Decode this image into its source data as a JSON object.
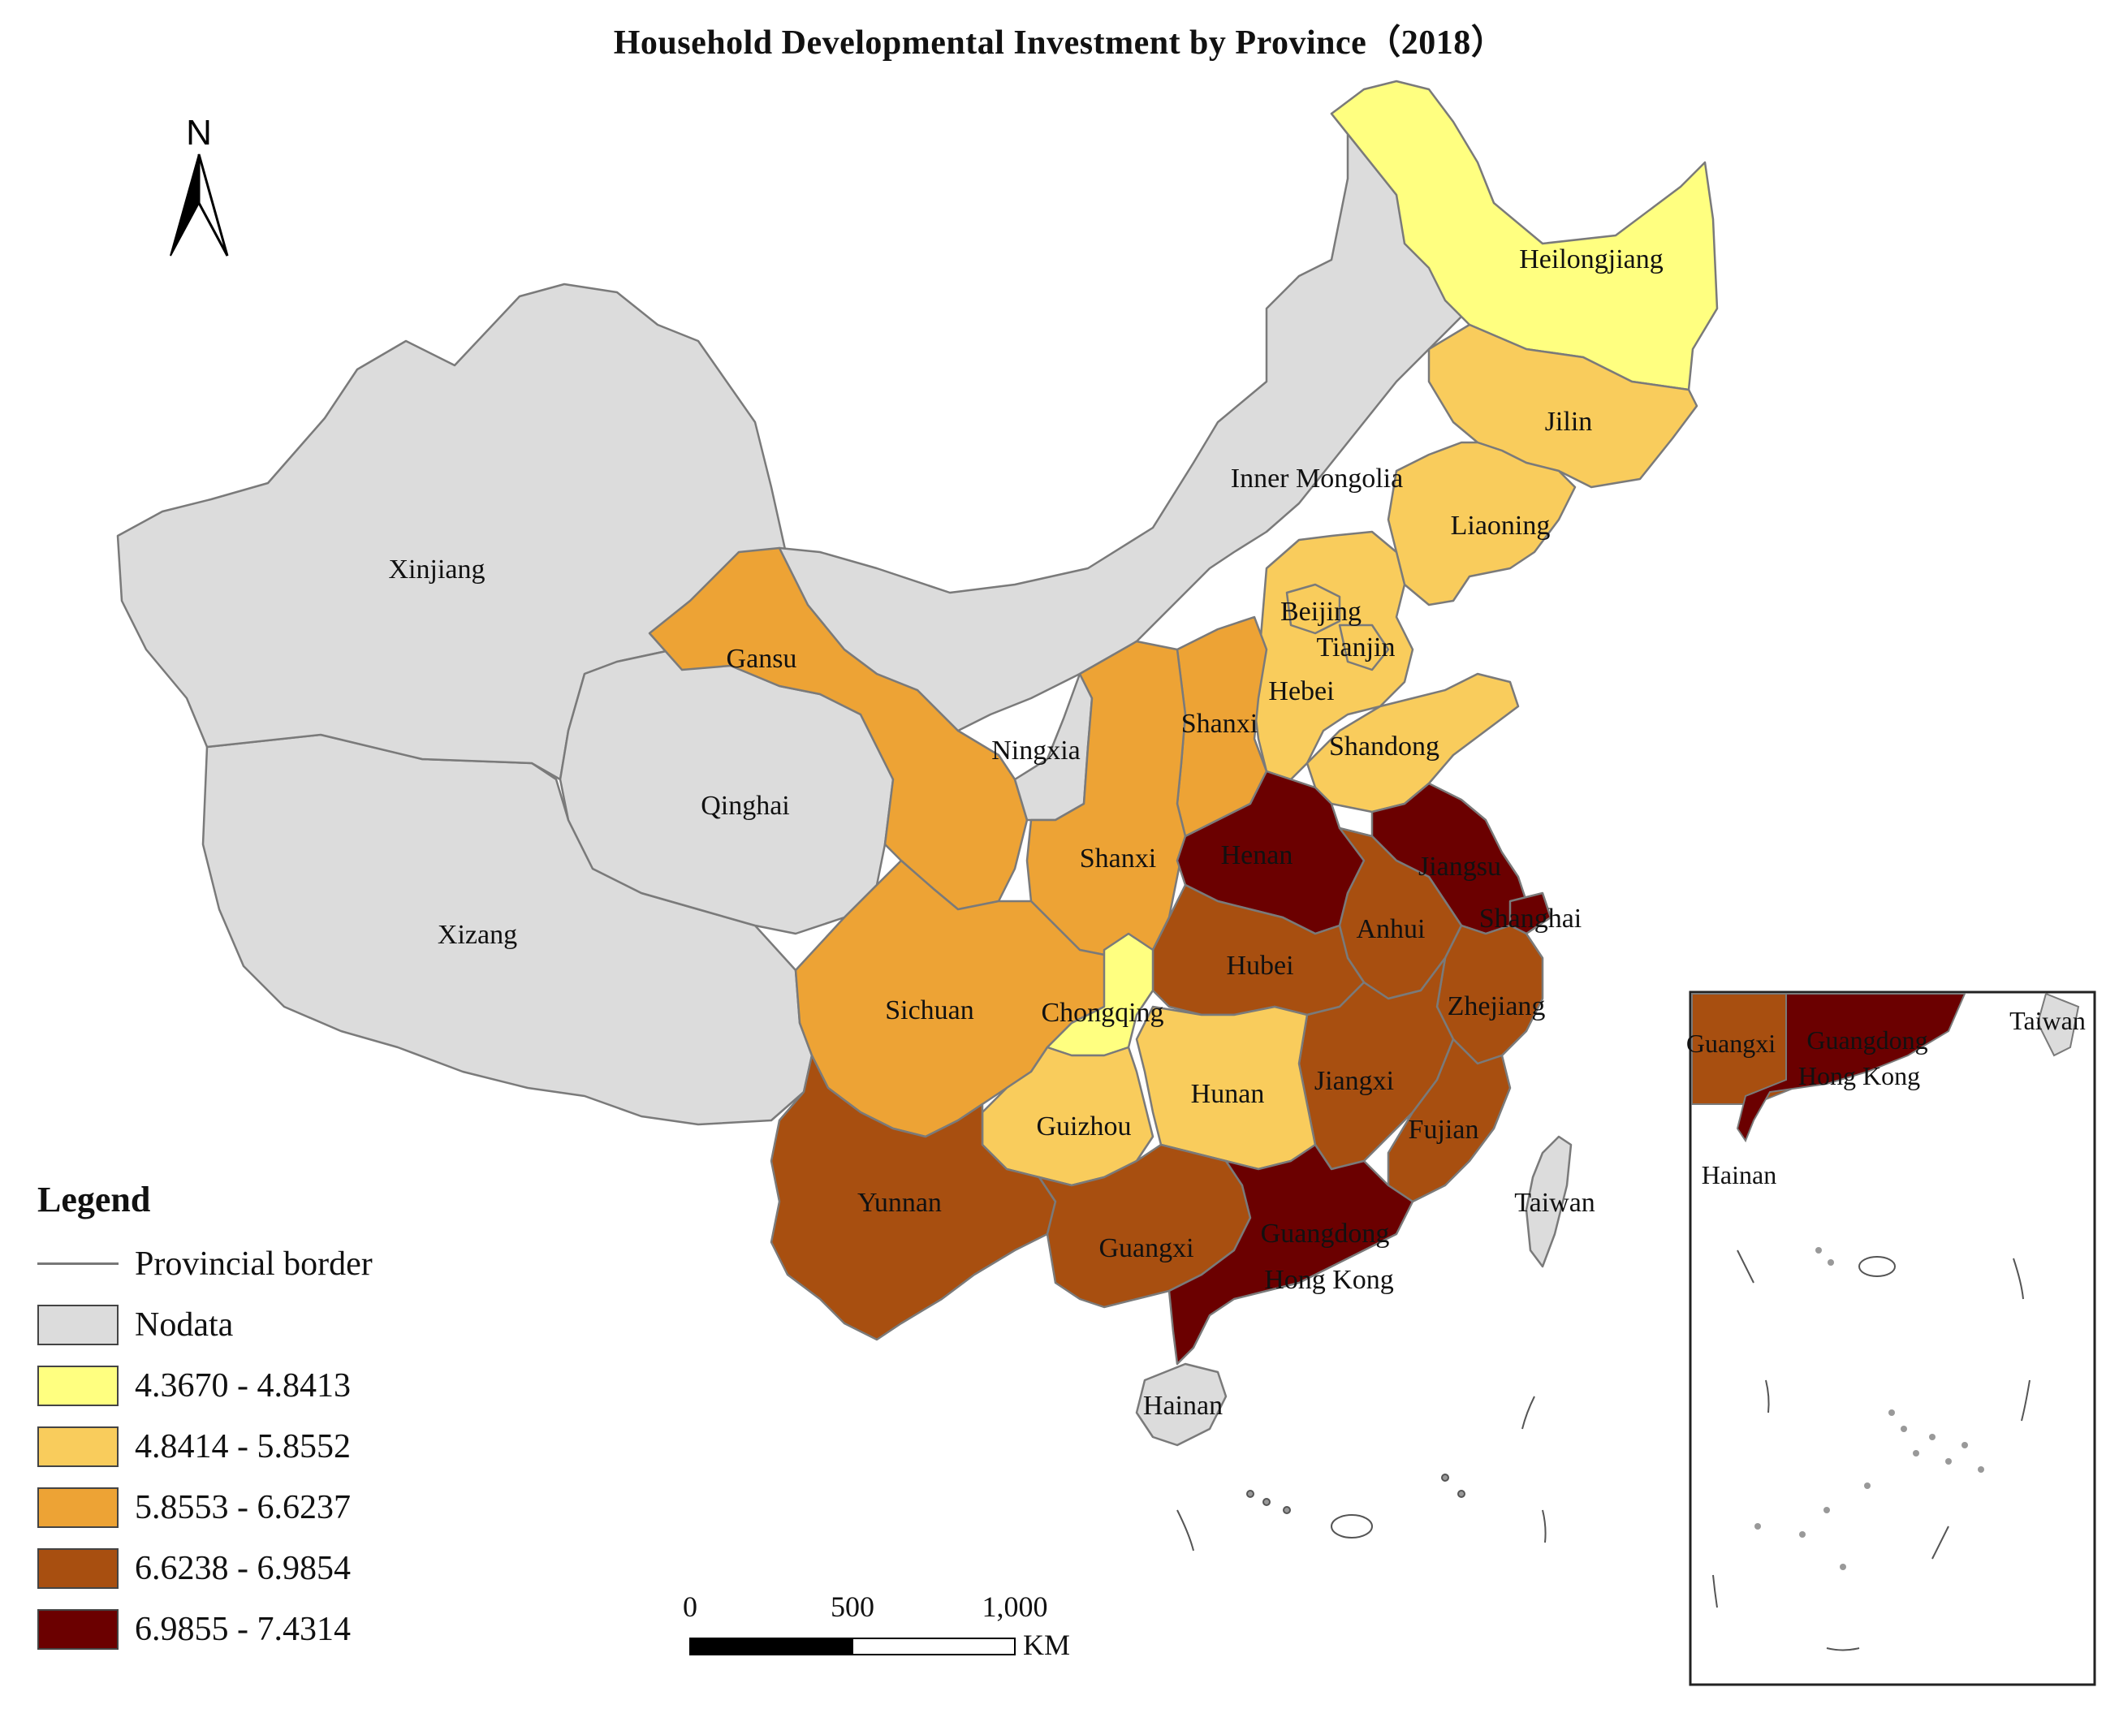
{
  "title": "Household Developmental Investment by Province（2018）",
  "north_arrow": {
    "letter": "N"
  },
  "colors": {
    "nodata": "#dcdcdc",
    "class1": "#ffff80",
    "class2": "#f9cc5c",
    "class3": "#eda335",
    "class4": "#a84f10",
    "class5": "#6b0000",
    "border": "#7a7a7a"
  },
  "legend": {
    "title": "Legend",
    "items": [
      {
        "label": "Provincial border",
        "type": "line"
      },
      {
        "label": "Nodata",
        "color": "#dcdcdc"
      },
      {
        "label": "4.3670 - 4.8413",
        "color": "#ffff80"
      },
      {
        "label": "4.8414 - 5.8552",
        "color": "#f9cc5c"
      },
      {
        "label": "5.8553 - 6.6237",
        "color": "#eda335"
      },
      {
        "label": "6.6238 - 6.9854",
        "color": "#a84f10"
      },
      {
        "label": "6.9855 - 7.4314",
        "color": "#6b0000"
      }
    ]
  },
  "provinces": [
    {
      "name": "Heilongjiang",
      "class": "4.3670 - 4.8413"
    },
    {
      "name": "Jilin",
      "class": "4.8414 - 5.8552"
    },
    {
      "name": "Liaoning",
      "class": "4.8414 - 5.8552"
    },
    {
      "name": "Inner Mongolia",
      "class": "Nodata"
    },
    {
      "name": "Xinjiang",
      "class": "Nodata"
    },
    {
      "name": "Gansu",
      "class": "5.8553 - 6.6237"
    },
    {
      "name": "Beijing",
      "class": "4.8414 - 5.8552"
    },
    {
      "name": "Tianjin",
      "class": "4.8414 - 5.8552"
    },
    {
      "name": "Hebei",
      "class": "4.8414 - 5.8552"
    },
    {
      "name": "Shanxi",
      "class": "5.8553 - 6.6237"
    },
    {
      "name": "Shandong",
      "class": "4.8414 - 5.8552"
    },
    {
      "name": "Ningxia",
      "class": "Nodata"
    },
    {
      "name": "Qinghai",
      "class": "Nodata"
    },
    {
      "name": "Shanxi",
      "class": "5.8553 - 6.6237"
    },
    {
      "name": "Henan",
      "class": "6.9855 - 7.4314"
    },
    {
      "name": "Jiangsu",
      "class": "6.9855 - 7.4314"
    },
    {
      "name": "Xizang",
      "class": "Nodata"
    },
    {
      "name": "Anhui",
      "class": "6.6238 - 6.9854"
    },
    {
      "name": "Shanghai",
      "class": "6.9855 - 7.4314"
    },
    {
      "name": "Hubei",
      "class": "6.6238 - 6.9854"
    },
    {
      "name": "Sichuan",
      "class": "5.8553 - 6.6237"
    },
    {
      "name": "Chongqing",
      "class": "4.3670 - 4.8413"
    },
    {
      "name": "Zhejiang",
      "class": "6.6238 - 6.9854"
    },
    {
      "name": "Hunan",
      "class": "4.8414 - 5.8552"
    },
    {
      "name": "Jiangxi",
      "class": "6.6238 - 6.9854"
    },
    {
      "name": "Guizhou",
      "class": "4.8414 - 5.8552"
    },
    {
      "name": "Fujian",
      "class": "6.6238 - 6.9854"
    },
    {
      "name": "Yunnan",
      "class": "6.6238 - 6.9854"
    },
    {
      "name": "Taiwan",
      "class": "Nodata"
    },
    {
      "name": "Guangxi",
      "class": "6.6238 - 6.9854"
    },
    {
      "name": "Guangdong",
      "class": "6.9855 - 7.4314"
    },
    {
      "name": "Hong Kong",
      "class": "6.9855 - 7.4314"
    },
    {
      "name": "Hainan",
      "class": "Nodata"
    }
  ],
  "inset": {
    "labels": [
      "Guangxi",
      "Guangdong",
      "Hong Kong",
      "Taiwan",
      "Hainan"
    ]
  },
  "scale_bar": {
    "ticks": [
      "0",
      "500",
      "1,000"
    ],
    "unit": "KM"
  }
}
